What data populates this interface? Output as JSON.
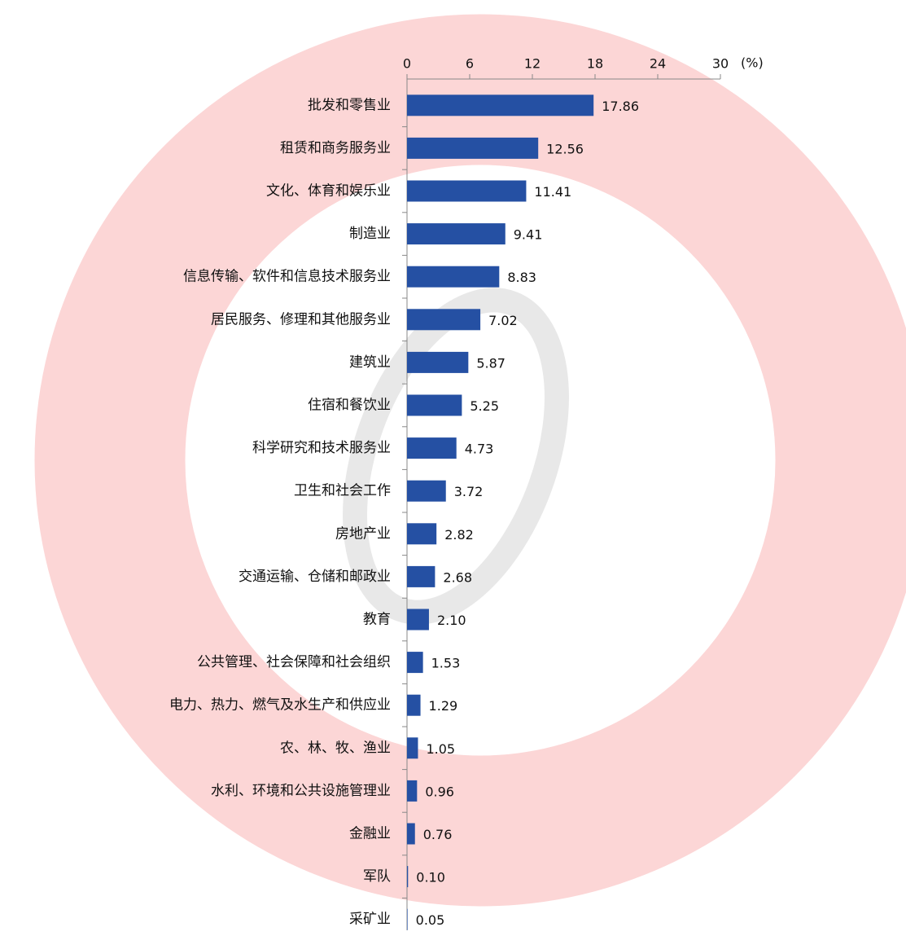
{
  "chart_data": {
    "type": "barh",
    "xlabel": "(%)",
    "categories": [
      "批发和零售业",
      "租赁和商务服务业",
      "文化、体育和娱乐业",
      "制造业",
      "信息传输、软件和信息技术服务业",
      "居民服务、修理和其他服务业",
      "建筑业",
      "住宿和餐饮业",
      "科学研究和技术服务业",
      "卫生和社会工作",
      "房地产业",
      "交通运输、仓储和邮政业",
      "教育",
      "公共管理、社会保障和社会组织",
      "电力、热力、燃气及水生产和供应业",
      "农、林、牧、渔业",
      "水利、环境和公共设施管理业",
      "金融业",
      "军队",
      "采矿业"
    ],
    "values": [
      17.86,
      12.56,
      11.41,
      9.41,
      8.83,
      7.02,
      5.87,
      5.25,
      4.73,
      3.72,
      2.82,
      2.68,
      2.1,
      1.53,
      1.29,
      1.05,
      0.96,
      0.76,
      0.1,
      0.05
    ],
    "value_labels": [
      "17.86",
      "12.56",
      "11.41",
      "9.41",
      "8.83",
      "7.02",
      "5.87",
      "5.25",
      "4.73",
      "3.72",
      "2.82",
      "2.68",
      "2.10",
      "1.53",
      "1.29",
      "1.05",
      "0.96",
      "0.76",
      "0.10",
      "0.05"
    ],
    "color": "#2550a3",
    "xlim": [
      0,
      30
    ],
    "xticks": [
      0,
      6,
      12,
      18,
      24,
      30
    ]
  }
}
